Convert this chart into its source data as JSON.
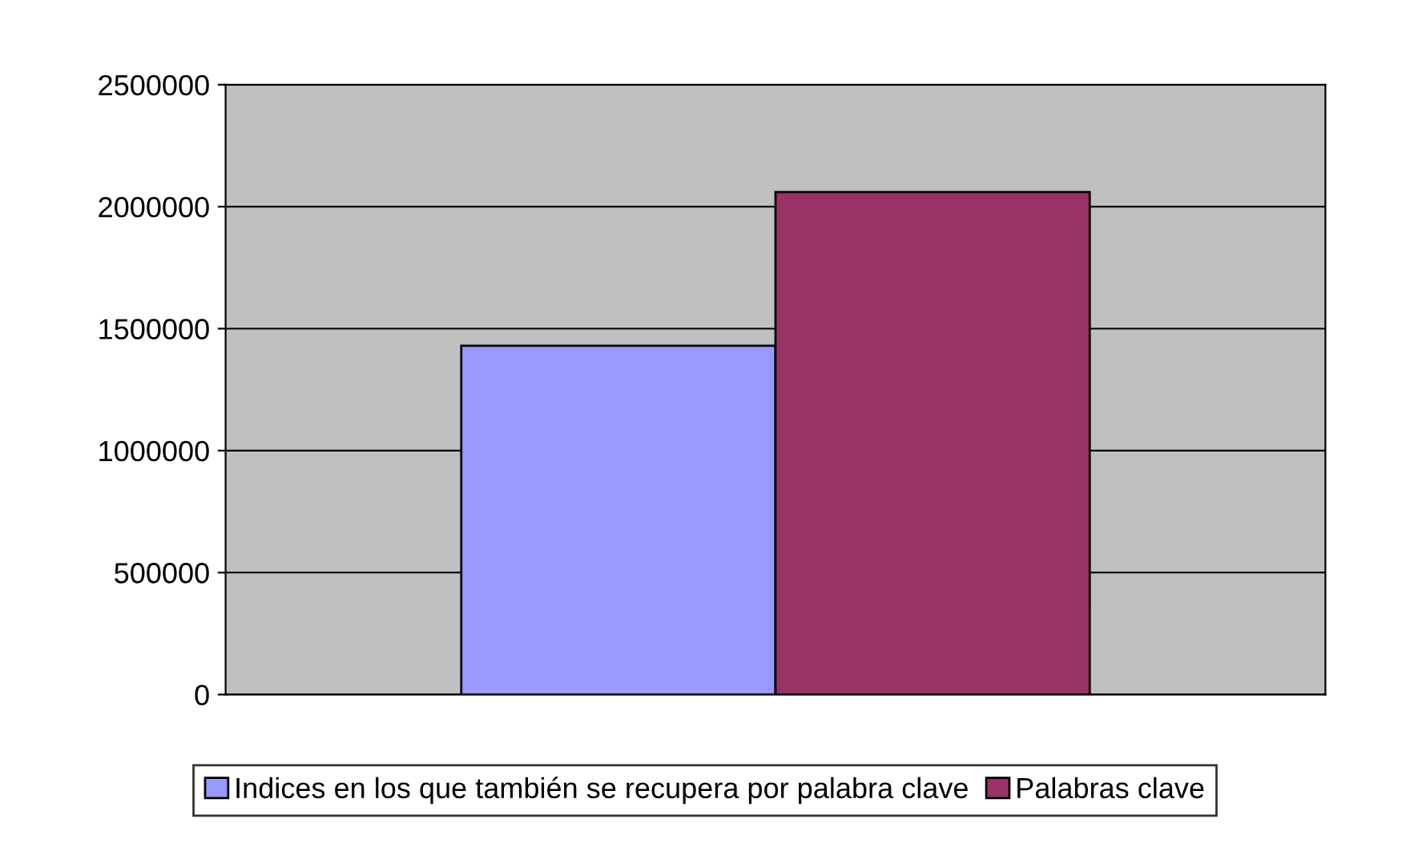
{
  "chart_data": {
    "type": "bar",
    "categories": [
      null
    ],
    "series": [
      {
        "name": "Indices en los que también se recupera por palabra clave",
        "color": "#9999ff",
        "values": [
          1430000
        ]
      },
      {
        "name": "Palabras clave",
        "color": "#993366",
        "values": [
          2060000
        ]
      }
    ],
    "ylim": [
      0,
      2500000
    ],
    "yticks": [
      0,
      500000,
      1000000,
      1500000,
      2000000,
      2500000
    ],
    "grid": "y",
    "legend": "bottom"
  }
}
